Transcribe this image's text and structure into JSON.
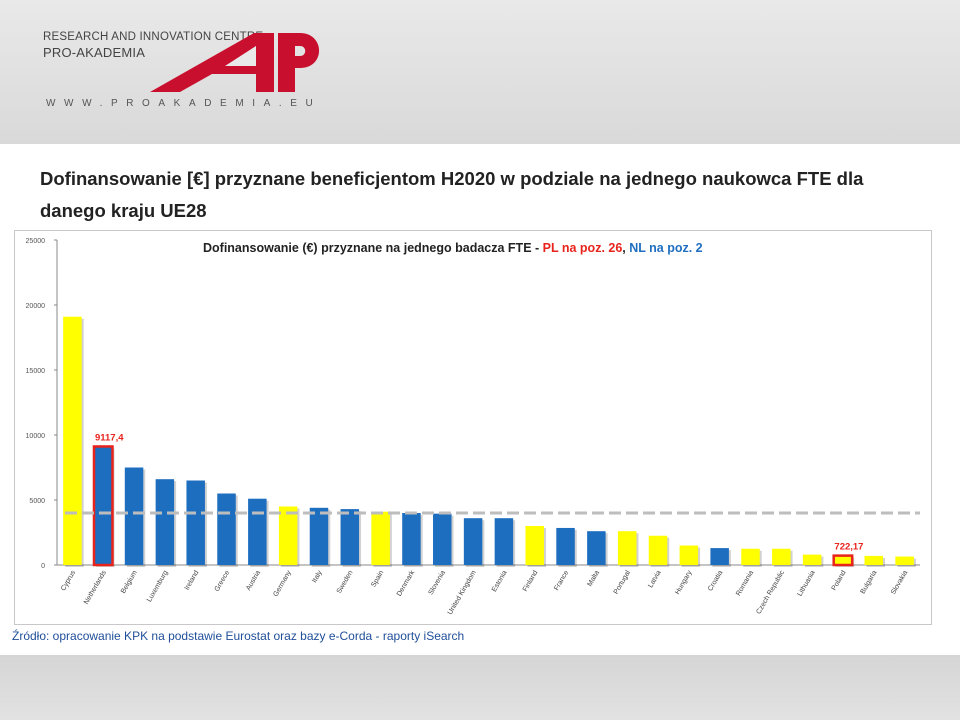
{
  "header": {
    "org_line1": "RESEARCH AND INNOVATION CENTRE",
    "org_line2": "PRO-AKADEMIA",
    "website": "WWW.PROAKADEMIA.EU",
    "logo_text": "AP"
  },
  "slide": {
    "title": "Dofinansowanie [€] przyznane beneficjentom H2020 w podziale na jednego naukowca FTE dla danego kraju UE28",
    "source": "Źródło: opracowanie KPK na podstawie Eurostat oraz bazy e-Corda  - raporty iSearch"
  },
  "colors": {
    "yellow": "#ffff00",
    "blue": "#1e6ec0",
    "red": "#e8231c",
    "logo_red": "#c8102e"
  },
  "chart_data": {
    "type": "bar",
    "title_parts": {
      "main": "Dofinansowanie (€) przyznane na jednego badacza FTE - ",
      "pl": "PL na poz. 26",
      "sep": ", ",
      "nl": "NL na poz. 2"
    },
    "categories": [
      "Cyprus",
      "Netherlands",
      "Belgium",
      "Luxemburg",
      "Ireland",
      "Greece",
      "Austria",
      "Germany",
      "Italy",
      "Sweden",
      "Spain",
      "Denmark",
      "Slovenia",
      "United Kingdom",
      "Estonia",
      "Finland",
      "France",
      "Malta",
      "Portugal",
      "Latvia",
      "Hungary",
      "Croatia",
      "Romania",
      "Czech Republic",
      "Lithuania",
      "Poland",
      "Bulgaria",
      "Slovakia"
    ],
    "values": [
      19100,
      9117.4,
      7500,
      6600,
      6500,
      5500,
      5100,
      4500,
      4400,
      4300,
      4100,
      4000,
      3950,
      3600,
      3600,
      3000,
      2850,
      2600,
      2600,
      2250,
      1500,
      1300,
      1250,
      1250,
      800,
      722.17,
      700,
      650
    ],
    "colors": [
      "yellow",
      "blue",
      "blue",
      "blue",
      "blue",
      "blue",
      "blue",
      "yellow",
      "blue",
      "blue",
      "yellow",
      "blue",
      "blue",
      "blue",
      "blue",
      "yellow",
      "blue",
      "blue",
      "yellow",
      "yellow",
      "yellow",
      "blue",
      "yellow",
      "yellow",
      "yellow",
      "yellow",
      "yellow",
      "yellow"
    ],
    "highlighted": [
      "Netherlands",
      "Poland"
    ],
    "data_labels": [
      {
        "category": "Netherlands",
        "text": "9117,4"
      },
      {
        "category": "Poland",
        "text": "722,17"
      }
    ],
    "average_line": 4000,
    "ylim": [
      0,
      25000
    ],
    "yticks": [
      0,
      5000,
      10000,
      15000,
      20000,
      25000
    ],
    "ytick_labels": [
      "0",
      "5000",
      "10000",
      "15000",
      "20000",
      "25000"
    ],
    "xlabel": "",
    "ylabel": "",
    "grid": false,
    "legend": false
  }
}
